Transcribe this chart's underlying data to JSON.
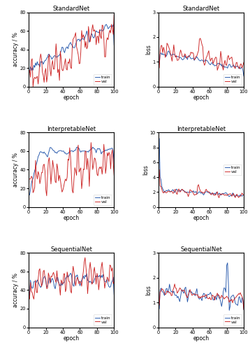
{
  "titles": [
    "StandardNet",
    "StandardNet",
    "InterpretableNet",
    "InterpretableNet",
    "SequentialNet",
    "SequentialNet"
  ],
  "ylabels_acc": "accuracy / %",
  "ylabels_loss": "loss",
  "xlabel": "epoch",
  "train_color": "#2255aa",
  "val_color": "#cc2222",
  "n_epochs": 100,
  "acc_ylim": [
    0,
    80
  ],
  "acc_yticks": [
    0,
    20,
    40,
    60,
    80
  ],
  "sn_loss_ylim": [
    0,
    3
  ],
  "sn_loss_yticks": [
    0,
    1,
    2,
    3
  ],
  "ip_loss_ylim": [
    0,
    10
  ],
  "ip_loss_yticks": [
    0,
    2,
    4,
    6,
    8,
    10
  ],
  "sq_loss_ylim": [
    0,
    3
  ],
  "sq_loss_yticks": [
    0,
    1,
    2,
    3
  ]
}
